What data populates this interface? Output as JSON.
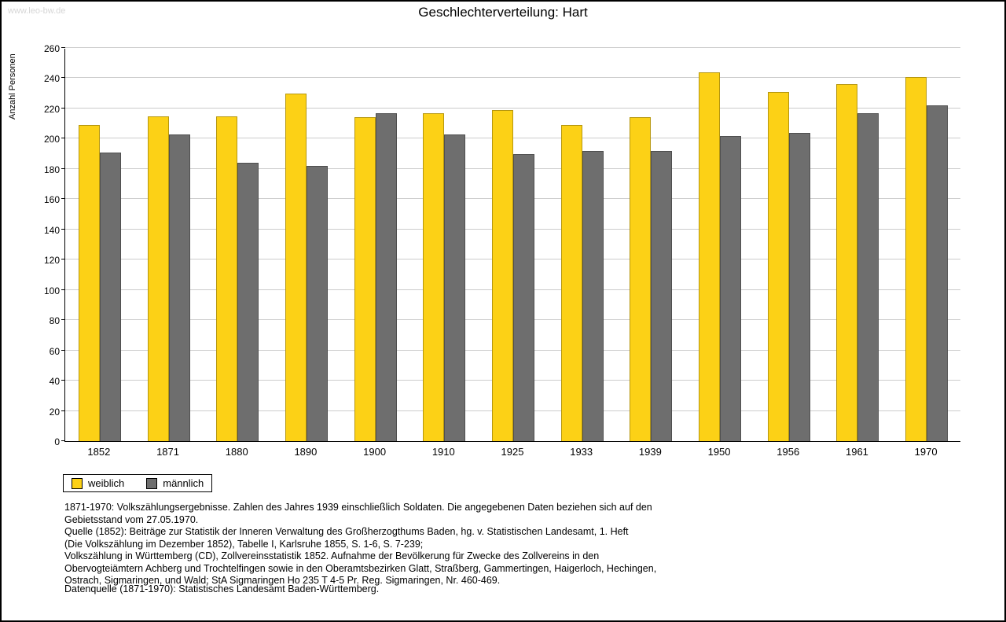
{
  "page": {
    "watermark": "www.leo-bw.de"
  },
  "chart_data": {
    "type": "bar",
    "title": "Geschlechterverteilung: Hart",
    "ylabel": "Anzahl Personen",
    "xlabel": "",
    "ylim": [
      0,
      260
    ],
    "ytick_step": 20,
    "grid": true,
    "legend_position": "bottom-left",
    "gridline_color": "#cccccc",
    "categories": [
      "1852",
      "1871",
      "1880",
      "1890",
      "1900",
      "1910",
      "1925",
      "1933",
      "1939",
      "1950",
      "1956",
      "1961",
      "1970"
    ],
    "series": [
      {
        "name": "weiblich",
        "color": "#FCD116",
        "values": [
          209,
          215,
          215,
          230,
          214,
          217,
          219,
          209,
          214,
          244,
          231,
          236,
          241
        ]
      },
      {
        "name": "männlich",
        "color": "#6E6E6E",
        "values": [
          191,
          203,
          184,
          182,
          217,
          203,
          190,
          192,
          192,
          202,
          204,
          217,
          222
        ]
      }
    ]
  },
  "footnotes": {
    "lines": [
      "1871-1970: Volkszählungsergebnisse. Zahlen des Jahres 1939 einschließlich Soldaten. Die angegebenen Daten beziehen sich auf den",
      "Gebietsstand vom 27.05.1970.",
      "Quelle (1852): Beiträge zur Statistik der Inneren Verwaltung des Großherzogthums Baden, hg. v. Statistischen Landesamt, 1. Heft",
      "(Die Volkszählung im Dezember 1852), Tabelle I, Karlsruhe 1855, S. 1-6, S. 7-239;",
      "Volkszählung in Württemberg (CD), Zollvereinsstatistik 1852. Aufnahme der Bevölkerung für Zwecke des Zollvereins in den",
      "Obervogteiämtern Achberg und Trochtelfingen sowie in den Oberamtsbezirken Glatt, Straßberg, Gammertingen, Haigerloch, Hechingen,",
      "Ostrach, Sigmaringen, und Wald; StA Sigmaringen Ho 235 T 4-5 Pr. Reg. Sigmaringen, Nr. 460-469."
    ],
    "datasource": "Datenquelle (1871-1970): Statistisches Landesamt Baden-Württemberg."
  }
}
